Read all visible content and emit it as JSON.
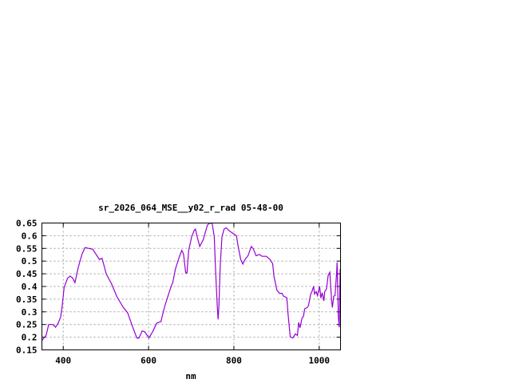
{
  "chart_data": {
    "type": "line",
    "title": "sr_2026_064_MSE__y02_r_rad 05-48-00",
    "xlabel": "nm",
    "ylabel": "",
    "xlim": [
      350,
      1050
    ],
    "ylim": [
      0.15,
      0.65
    ],
    "xticks": [
      400,
      600,
      800,
      1000
    ],
    "yticks": [
      0.15,
      0.2,
      0.25,
      0.3,
      0.35,
      0.4,
      0.45,
      0.5,
      0.55,
      0.6,
      0.65
    ],
    "xtick_labels": [
      "400",
      "600",
      "800",
      "1000"
    ],
    "ytick_labels": [
      "0.15",
      "0.2",
      "0.25",
      "0.3",
      "0.35",
      "0.4",
      "0.45",
      "0.5",
      "0.55",
      "0.6",
      "0.65"
    ],
    "grid": true,
    "legend": "none",
    "line_color": "#9400d3",
    "series": [
      {
        "x": [
          350,
          360,
          366,
          376,
          382,
          388,
          394,
          397.5,
          402,
          410,
          416,
          422.5,
          427.5,
          435,
          444,
          451,
          469,
          485,
          491,
          501,
          513,
          526,
          541,
          551,
          563,
          572.5,
          577.5,
          585,
          591,
          601,
          610,
          619,
          629,
          638,
          651,
          657,
          663,
          672,
          678,
          682,
          687,
          690,
          694,
          701,
          707,
          710,
          714,
          720,
          728,
          738,
          743,
          749,
          754,
          757,
          761,
          763,
          765,
          768,
          772,
          777,
          782,
          788,
          797,
          806,
          810,
          816,
          821,
          826,
          833,
          841,
          846,
          852,
          860,
          866,
          876,
          885,
          891,
          894,
          901,
          907,
          913,
          916,
          924,
          927,
          932,
          938,
          944,
          949,
          952,
          955,
          960,
          963,
          966,
          972,
          975,
          980,
          983,
          987,
          989,
          993,
          996,
          1001,
          1004,
          1007,
          1011,
          1013,
          1017,
          1021,
          1025,
          1029,
          1031,
          1034,
          1037,
          1041,
          1042,
          1045,
          1047,
          1049,
          1050
        ],
        "y": [
          0.187,
          0.208,
          0.25,
          0.25,
          0.239,
          0.255,
          0.28,
          0.323,
          0.396,
          0.432,
          0.441,
          0.432,
          0.415,
          0.474,
          0.527,
          0.553,
          0.547,
          0.506,
          0.511,
          0.448,
          0.411,
          0.359,
          0.317,
          0.296,
          0.239,
          0.197,
          0.197,
          0.225,
          0.221,
          0.197,
          0.223,
          0.255,
          0.262,
          0.323,
          0.391,
          0.417,
          0.469,
          0.516,
          0.542,
          0.527,
          0.453,
          0.453,
          0.542,
          0.595,
          0.621,
          0.626,
          0.595,
          0.558,
          0.584,
          0.642,
          0.649,
          0.649,
          0.595,
          0.464,
          0.323,
          0.27,
          0.323,
          0.48,
          0.595,
          0.626,
          0.631,
          0.621,
          0.61,
          0.6,
          0.558,
          0.506,
          0.488,
          0.506,
          0.521,
          0.558,
          0.547,
          0.521,
          0.526,
          0.519,
          0.519,
          0.506,
          0.49,
          0.438,
          0.385,
          0.373,
          0.373,
          0.362,
          0.356,
          0.291,
          0.202,
          0.197,
          0.213,
          0.207,
          0.258,
          0.237,
          0.276,
          0.281,
          0.312,
          0.317,
          0.325,
          0.37,
          0.38,
          0.401,
          0.37,
          0.38,
          0.364,
          0.401,
          0.354,
          0.375,
          0.343,
          0.38,
          0.39,
          0.443,
          0.456,
          0.346,
          0.317,
          0.362,
          0.364,
          0.458,
          0.495,
          0.28,
          0.239,
          0.467,
          0.467
        ]
      }
    ]
  }
}
